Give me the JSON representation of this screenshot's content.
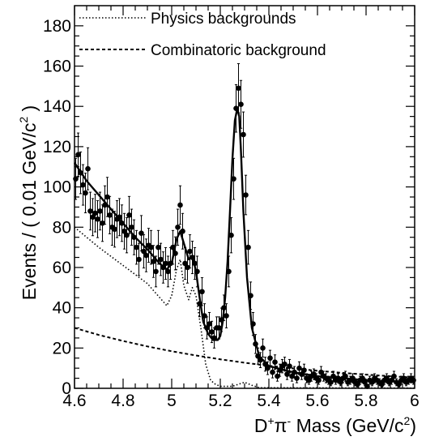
{
  "chart_data": {
    "type": "scatter",
    "xlabel": {
      "pre": "D",
      "sup1": "+",
      "mid": "π",
      "sup2": "-",
      "post": " Mass (GeV/c",
      "sup3": "2",
      "end": ")"
    },
    "ylabel": {
      "text": "Events / ( 0.01 GeV/c",
      "sup": "2",
      "end": " )"
    },
    "xlim": [
      4.6,
      6.0
    ],
    "ylim": [
      0,
      190
    ],
    "x_ticks": [
      "4.6",
      "4.8",
      "5",
      "5.2",
      "5.4",
      "5.6",
      "5.8",
      "6"
    ],
    "y_ticks": [
      "0",
      "20",
      "40",
      "60",
      "80",
      "100",
      "120",
      "140",
      "160",
      "180"
    ],
    "legend": [
      {
        "label": "Physics backgrounds",
        "style": "dotted"
      },
      {
        "label": "Combinatoric background",
        "style": "dashed"
      }
    ],
    "data_points": {
      "x": [
        4.605,
        4.615,
        4.625,
        4.635,
        4.645,
        4.655,
        4.665,
        4.675,
        4.685,
        4.695,
        4.705,
        4.715,
        4.725,
        4.735,
        4.745,
        4.755,
        4.765,
        4.775,
        4.785,
        4.795,
        4.805,
        4.815,
        4.825,
        4.835,
        4.845,
        4.855,
        4.865,
        4.875,
        4.885,
        4.895,
        4.905,
        4.915,
        4.925,
        4.935,
        4.945,
        4.955,
        4.965,
        4.975,
        4.985,
        4.995,
        5.005,
        5.015,
        5.025,
        5.035,
        5.045,
        5.055,
        5.065,
        5.075,
        5.085,
        5.095,
        5.105,
        5.115,
        5.125,
        5.135,
        5.145,
        5.155,
        5.165,
        5.175,
        5.185,
        5.195,
        5.205,
        5.215,
        5.225,
        5.235,
        5.245,
        5.255,
        5.265,
        5.275,
        5.285,
        5.295,
        5.305,
        5.315,
        5.325,
        5.335,
        5.345,
        5.355,
        5.365,
        5.375,
        5.385,
        5.395,
        5.405,
        5.415,
        5.425,
        5.435,
        5.445,
        5.455,
        5.465,
        5.475,
        5.485,
        5.495,
        5.505,
        5.515,
        5.525,
        5.535,
        5.545,
        5.555,
        5.565,
        5.575,
        5.585,
        5.595,
        5.605,
        5.615,
        5.625,
        5.635,
        5.645,
        5.655,
        5.665,
        5.675,
        5.685,
        5.695,
        5.705,
        5.715,
        5.725,
        5.735,
        5.745,
        5.755,
        5.765,
        5.775,
        5.785,
        5.795,
        5.805,
        5.815,
        5.825,
        5.835,
        5.845,
        5.855,
        5.865,
        5.875,
        5.885,
        5.895,
        5.905,
        5.915,
        5.925,
        5.935,
        5.945,
        5.955,
        5.965,
        5.975,
        5.985,
        5.995
      ],
      "y": [
        104,
        116,
        107,
        101,
        97,
        109,
        88,
        85,
        87,
        84,
        88,
        82,
        91,
        95,
        86,
        80,
        79,
        84,
        85,
        82,
        78,
        76,
        86,
        80,
        75,
        70,
        64,
        77,
        68,
        66,
        71,
        70,
        63,
        58,
        70,
        64,
        60,
        62,
        58,
        62,
        70,
        67,
        80,
        91,
        78,
        62,
        60,
        68,
        65,
        62,
        58,
        42,
        48,
        36,
        30,
        32,
        28,
        25,
        30,
        30,
        34,
        40,
        36,
        58,
        76,
        104,
        139,
        149,
        141,
        126,
        96,
        70,
        46,
        32,
        22,
        16,
        14,
        20,
        12,
        10,
        15,
        8,
        13,
        6,
        9,
        11,
        12,
        7,
        11,
        6,
        8,
        5,
        10,
        7,
        9,
        5,
        4,
        6,
        7,
        5,
        4,
        8,
        6,
        5,
        4,
        3,
        6,
        4,
        5,
        3,
        5,
        6,
        3,
        4,
        5,
        3,
        2,
        4,
        5,
        3,
        1,
        4,
        3,
        5,
        4,
        3,
        2,
        4,
        5,
        3,
        4,
        6,
        3,
        2,
        4,
        5,
        3,
        4,
        5,
        4
      ],
      "error_bars": "statistical (sqrt N)"
    },
    "series": [
      {
        "name": "",
        "style": "solid",
        "x": [
          4.6,
          4.65,
          4.7,
          4.75,
          4.8,
          4.85,
          4.9,
          4.95,
          4.98,
          5.0,
          5.02,
          5.035,
          5.05,
          5.07,
          5.085,
          5.1,
          5.115,
          5.13,
          5.15,
          5.17,
          5.19,
          5.2,
          5.21,
          5.22,
          5.23,
          5.24,
          5.25,
          5.26,
          5.27,
          5.278,
          5.285,
          5.295,
          5.31,
          5.33,
          5.36,
          5.4,
          5.5,
          5.6,
          5.7,
          5.8,
          5.9,
          6.0
        ],
        "y": [
          112,
          103,
          96,
          89,
          82,
          75,
          69,
          62,
          59,
          62,
          74,
          78,
          72,
          64,
          66,
          58,
          45,
          33,
          27,
          24,
          24,
          26,
          33,
          45,
          63,
          88,
          114,
          133,
          139,
          135,
          118,
          88,
          55,
          30,
          16,
          11,
          8,
          6,
          5,
          4,
          3.5,
          3
        ]
      },
      {
        "name": "Physics backgrounds",
        "style": "dotted",
        "x": [
          4.6,
          4.7,
          4.8,
          4.9,
          4.98,
          5.0,
          5.02,
          5.035,
          5.05,
          5.07,
          5.085,
          5.1,
          5.12,
          5.14,
          5.16,
          5.18,
          5.2,
          5.25,
          5.3,
          5.33,
          5.36,
          6.0
        ],
        "y": [
          80,
          70,
          61,
          52,
          41,
          46,
          59,
          64,
          51,
          44,
          50,
          46,
          30,
          12,
          4,
          2,
          1,
          1,
          3,
          1.5,
          0.3,
          0.1
        ]
      },
      {
        "name": "Combinatoric background",
        "style": "dashed",
        "x": [
          4.6,
          4.7,
          4.8,
          4.9,
          5.0,
          5.1,
          5.2,
          5.3,
          5.4,
          5.5,
          5.6,
          5.7,
          5.8,
          5.9,
          6.0
        ],
        "y": [
          30,
          26.5,
          23.5,
          20.8,
          18.4,
          16.3,
          14.4,
          12.7,
          11.2,
          9.9,
          8.7,
          7.7,
          6.8,
          6.0,
          5.3
        ]
      }
    ]
  }
}
